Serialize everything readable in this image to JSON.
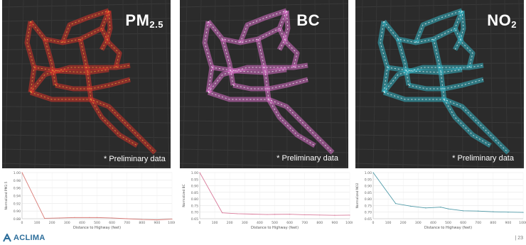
{
  "panels": [
    {
      "title": "PM",
      "title_sub": "2.5",
      "note": "* Preliminary data",
      "color": "#d8332a",
      "accent": "#f0b23a"
    },
    {
      "title": "BC",
      "title_sub": "",
      "note": "* Preliminary data",
      "color": "#d86fc8",
      "accent": "#ffffff"
    },
    {
      "title": "NO",
      "title_sub": "2",
      "note": "* Preliminary data",
      "color": "#35b7c6",
      "accent": "#ffffff"
    }
  ],
  "chart_data": [
    {
      "type": "line",
      "xlabel": "Distance to Highway (feet)",
      "ylabel": "Normalized PM2.5",
      "xlim": [
        0,
        1000
      ],
      "ylim": [
        0.88,
        1.0
      ],
      "xticks": [
        0,
        100,
        200,
        300,
        400,
        500,
        600,
        700,
        800,
        900,
        1000
      ],
      "yticks": [
        "0.88",
        "0.90",
        "0.92",
        "0.94",
        "0.96",
        "0.98",
        "1.00"
      ],
      "line_color": "#d97a76",
      "x": [
        0,
        150,
        250,
        350,
        450,
        500,
        600,
        700,
        800,
        900,
        1000
      ],
      "y": [
        1.0,
        0.881,
        0.882,
        0.883,
        0.883,
        0.883,
        0.882,
        0.88,
        0.878,
        0.877,
        0.879
      ]
    },
    {
      "type": "line",
      "xlabel": "Distance to Highway (feet)",
      "ylabel": "Normalized BC",
      "xlim": [
        0,
        1000
      ],
      "ylim": [
        0.65,
        1.0
      ],
      "xticks": [
        0,
        100,
        200,
        300,
        400,
        500,
        600,
        700,
        800,
        900,
        1000
      ],
      "yticks": [
        "0.65",
        "0.70",
        "0.75",
        "0.80",
        "0.85",
        "0.90",
        "0.95",
        "1.00"
      ],
      "line_color": "#d97a9a",
      "x": [
        0,
        150,
        250,
        350,
        450,
        500,
        600,
        700,
        800,
        900,
        1000
      ],
      "y": [
        1.0,
        0.695,
        0.688,
        0.685,
        0.682,
        0.683,
        0.684,
        0.68,
        0.678,
        0.676,
        0.677
      ]
    },
    {
      "type": "line",
      "xlabel": "Distance to Highway (feet)",
      "ylabel": "Normalized NO2",
      "xlim": [
        0,
        1000
      ],
      "ylim": [
        0.65,
        1.0
      ],
      "xticks": [
        0,
        100,
        200,
        300,
        400,
        500,
        600,
        700,
        800,
        900,
        1000
      ],
      "yticks": [
        "0.65",
        "0.70",
        "0.75",
        "0.80",
        "0.85",
        "0.90",
        "0.95",
        "1.00"
      ],
      "line_color": "#4f9aa8",
      "x": [
        0,
        150,
        250,
        350,
        450,
        500,
        600,
        700,
        800,
        900,
        1000
      ],
      "y": [
        1.0,
        0.765,
        0.745,
        0.732,
        0.738,
        0.725,
        0.71,
        0.708,
        0.703,
        0.7,
        0.698
      ]
    }
  ],
  "footer": {
    "logo_text": "ACLIMA",
    "page_number": "| 23"
  }
}
